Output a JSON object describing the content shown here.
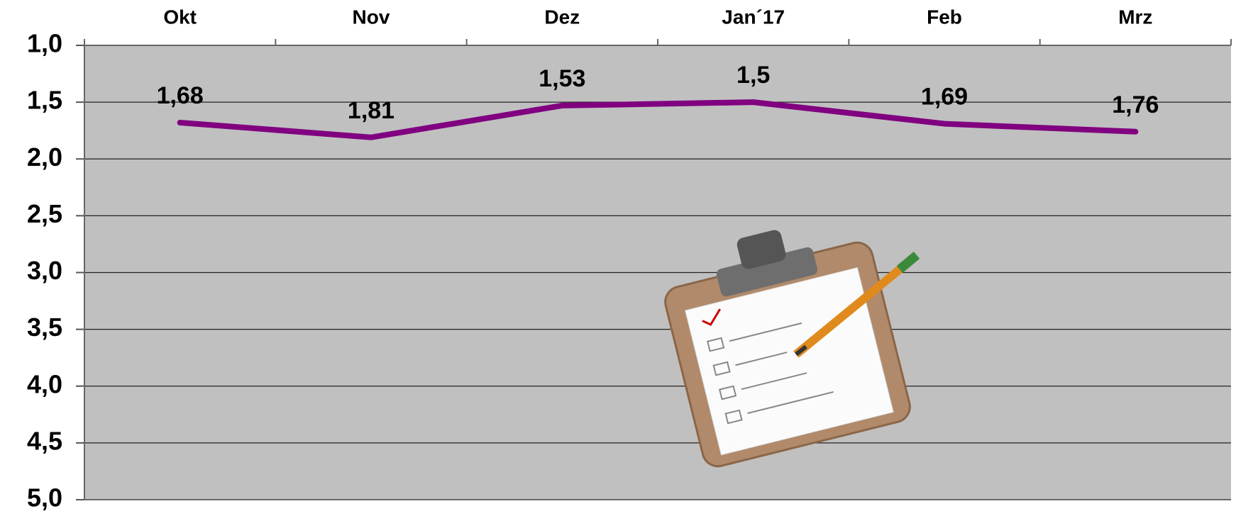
{
  "chart_data": {
    "type": "line",
    "categories": [
      "Okt",
      "Nov",
      "Dez",
      "Jan´17",
      "Feb",
      "Mrz"
    ],
    "series": [
      {
        "color": "#800080",
        "values": [
          1.68,
          1.81,
          1.53,
          1.5,
          1.69,
          1.76
        ],
        "value_labels": [
          "1,68",
          "1,81",
          "1,53",
          "1,5",
          "1,69",
          "1,76"
        ]
      }
    ],
    "ylim": [
      1,
      5
    ],
    "y_reversed": true,
    "yticks": [
      {
        "value": 1,
        "label": "1,0"
      },
      {
        "value": 1.5,
        "label": "1,5"
      },
      {
        "value": 2,
        "label": "2,0"
      },
      {
        "value": 2.5,
        "label": "2,5"
      },
      {
        "value": 3,
        "label": "3,0"
      },
      {
        "value": 3.5,
        "label": "3,5"
      },
      {
        "value": 4,
        "label": "4,0"
      },
      {
        "value": 4.5,
        "label": "4,5"
      },
      {
        "value": 5,
        "label": "5,0"
      }
    ],
    "grid": true,
    "x_axis_position": "top",
    "background": "#c0c0c0"
  }
}
